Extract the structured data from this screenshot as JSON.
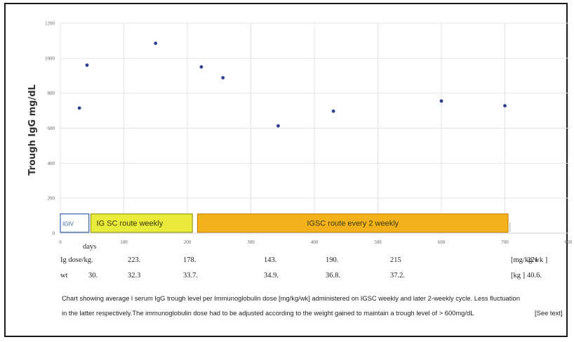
{
  "chart_data": {
    "type": "scatter",
    "ylabel": "Trough IgG mg/dL",
    "xlabel": "days",
    "xlim": [
      0,
      800
    ],
    "ylim": [
      0,
      1200
    ],
    "x_ticks": [
      "0",
      "100",
      "200",
      "300",
      "400",
      "500",
      "600",
      "700",
      "800"
    ],
    "y_ticks": [
      "0",
      "200",
      "400",
      "600",
      "800",
      "1000",
      "1200"
    ],
    "points": [
      {
        "x": 30,
        "y": 715
      },
      {
        "x": 42,
        "y": 960
      },
      {
        "x": 150,
        "y": 1085
      },
      {
        "x": 222,
        "y": 950
      },
      {
        "x": 256,
        "y": 888
      },
      {
        "x": 343,
        "y": 613
      },
      {
        "x": 430,
        "y": 697
      },
      {
        "x": 600,
        "y": 755
      },
      {
        "x": 700,
        "y": 728
      }
    ],
    "color": "#2b3f8f",
    "phases": [
      {
        "label": "IGIV",
        "x_start": 0,
        "x_end": 45,
        "fill": "#ffffff",
        "border": "#3a62a8"
      },
      {
        "label": "IG SC route weekly",
        "x_start": 48,
        "x_end": 208,
        "fill": "#e9ea3a",
        "border": "#9aa01a"
      },
      {
        "label": "IGSC route every 2 weekly",
        "x_start": 216,
        "x_end": 705,
        "fill": "#f3b21c",
        "border": "#c98a08"
      }
    ]
  },
  "table": {
    "dose_label": "Ig dose/kg.",
    "dose_values": [
      {
        "text": "223.",
        "x": 96
      },
      {
        "text": "178.",
        "x": 175
      },
      {
        "text": "143.",
        "x": 290
      },
      {
        "text": "190.",
        "x": 378
      },
      {
        "text": "215",
        "x": 470
      },
      {
        "text": "221",
        "x": 665
      }
    ],
    "dose_unit": "[mg/kg/wk ]",
    "wt_label": "wt",
    "wt_values": [
      {
        "text": "30.",
        "x": 40
      },
      {
        "text": "32.3",
        "x": 96
      },
      {
        "text": "33.7.",
        "x": 175
      },
      {
        "text": "34.9.",
        "x": 290
      },
      {
        "text": "36.8.",
        "x": 378
      },
      {
        "text": "37.2.",
        "x": 470
      },
      {
        "text": "40.6.",
        "x": 665
      }
    ],
    "wt_unit": "[kg ]"
  },
  "caption": {
    "line1": "Chart showing  average l serum IgG trough level per Immunoglobulin dose [mg/kg/wk] administered on IGSC weekly and later 2-weekly cycle.  Less fluctuation",
    "line2": "in the latter respectively.The immunoglobulin dose had to be adjusted according to the weight gained to maintain a trough level of > 600mg/dL",
    "see_text": "[See text]"
  }
}
